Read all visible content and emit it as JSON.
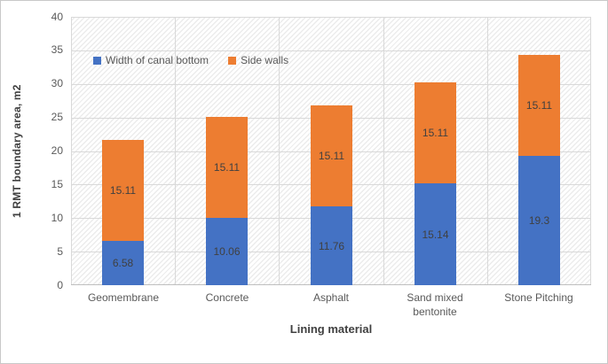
{
  "chart_data": {
    "type": "bar",
    "stacked": true,
    "title": "",
    "xlabel": "Lining material",
    "ylabel": "1 RMT boundary area, m2",
    "categories": [
      "Geomembrane",
      "Concrete",
      "Asphalt",
      "Sand mixed bentonite",
      "Stone Pitching"
    ],
    "series": [
      {
        "name": "Width of canal bottom",
        "color": "#4472C4",
        "values": [
          6.58,
          10.06,
          11.76,
          15.14,
          19.3
        ],
        "labels": [
          "6.58",
          "10.06",
          "11.76",
          "15.14",
          "19.3"
        ]
      },
      {
        "name": "Side walls",
        "color": "#ED7D31",
        "values": [
          15.11,
          15.11,
          15.11,
          15.11,
          15.11
        ],
        "labels": [
          "15.11",
          "15.11",
          "15.11",
          "15.11",
          "15.11"
        ]
      }
    ],
    "ylim": [
      0,
      40
    ],
    "yticks": [
      0,
      5,
      10,
      15,
      20,
      25,
      30,
      35,
      40
    ],
    "grid": true,
    "legend_position": "top-inside",
    "colors": {
      "data_label": "#404040",
      "axis_text": "#595959",
      "axis_title": "#404040",
      "gridline": "#d9d9d9",
      "axis_line": "#bfbfbf"
    }
  }
}
